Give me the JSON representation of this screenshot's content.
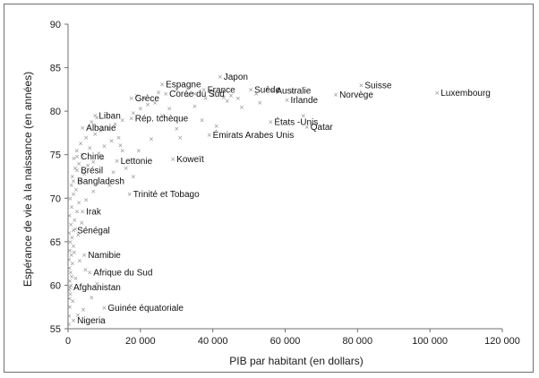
{
  "chart_data": {
    "type": "scatter",
    "title": "",
    "xlabel": "PIB par habitant (en dollars)",
    "ylabel": "Espérance de vie à la naissance (en années)",
    "xlim": [
      0,
      120000
    ],
    "ylim": [
      55,
      90
    ],
    "xticks": [
      0,
      20000,
      40000,
      60000,
      80000,
      100000,
      120000
    ],
    "xtick_labels": [
      "0",
      "20 000",
      "40 000",
      "60 000",
      "80 000",
      "100 000",
      "120 000"
    ],
    "yticks": [
      55,
      60,
      65,
      70,
      75,
      80,
      85,
      90
    ],
    "ytick_labels": [
      "55",
      "60",
      "65",
      "70",
      "75",
      "80",
      "85",
      "90"
    ],
    "grid": false,
    "marker": "x",
    "marker_color": "#8a8a8a",
    "labeled_points": [
      {
        "label": "Luxembourg",
        "x": 102000,
        "y": 82.1
      },
      {
        "label": "Suisse",
        "x": 81000,
        "y": 83.0
      },
      {
        "label": "Norvège",
        "x": 74000,
        "y": 81.9
      },
      {
        "label": "Qatar",
        "x": 66000,
        "y": 78.2
      },
      {
        "label": "États -Unis",
        "x": 56000,
        "y": 78.8
      },
      {
        "label": "Irlande",
        "x": 60500,
        "y": 81.3
      },
      {
        "label": "Suède",
        "x": 50500,
        "y": 82.5
      },
      {
        "label": "Australie",
        "x": 56500,
        "y": 82.4
      },
      {
        "label": "Japon",
        "x": 42000,
        "y": 84.0
      },
      {
        "label": "France",
        "x": 37500,
        "y": 82.5
      },
      {
        "label": "Espagne",
        "x": 26000,
        "y": 83.1
      },
      {
        "label": "Corée du Sud",
        "x": 27000,
        "y": 82.0
      },
      {
        "label": "Grèce",
        "x": 17500,
        "y": 81.5
      },
      {
        "label": "Rép. tchèque",
        "x": 17500,
        "y": 79.2
      },
      {
        "label": "Émirats Arabes Unis",
        "x": 39000,
        "y": 77.3
      },
      {
        "label": "Koweït",
        "x": 29000,
        "y": 74.5
      },
      {
        "label": "Lettonie",
        "x": 13500,
        "y": 74.3
      },
      {
        "label": "Liban",
        "x": 7500,
        "y": 79.5
      },
      {
        "label": "Albanie",
        "x": 4000,
        "y": 78.1
      },
      {
        "label": "Chine",
        "x": 2500,
        "y": 74.8
      },
      {
        "label": "Brésil",
        "x": 2500,
        "y": 73.2
      },
      {
        "label": "Trinité et Tobago",
        "x": 17000,
        "y": 70.5
      },
      {
        "label": "Bangladesh",
        "x": 1500,
        "y": 72.0
      },
      {
        "label": "Irak",
        "x": 4000,
        "y": 68.5
      },
      {
        "label": "Sénégal",
        "x": 1500,
        "y": 66.3
      },
      {
        "label": "Namibie",
        "x": 4500,
        "y": 63.5
      },
      {
        "label": "Afrique du Sud",
        "x": 6000,
        "y": 61.5
      },
      {
        "label": "Afghanistan",
        "x": 500,
        "y": 59.8
      },
      {
        "label": "Guinée équatoriale",
        "x": 10000,
        "y": 57.4
      },
      {
        "label": "Nigeria",
        "x": 1500,
        "y": 56.0
      }
    ],
    "unlabeled_points": [
      [
        200,
        55.5
      ],
      [
        300,
        56.5
      ],
      [
        500,
        57.5
      ],
      [
        400,
        58.5
      ],
      [
        600,
        59.0
      ],
      [
        300,
        59.5
      ],
      [
        800,
        60.0
      ],
      [
        500,
        60.5
      ],
      [
        1000,
        61.0
      ],
      [
        700,
        61.5
      ],
      [
        400,
        62.0
      ],
      [
        1200,
        62.5
      ],
      [
        300,
        63.0
      ],
      [
        900,
        63.5
      ],
      [
        500,
        64.0
      ],
      [
        1500,
        64.5
      ],
      [
        600,
        65.0
      ],
      [
        1100,
        65.5
      ],
      [
        300,
        66.0
      ],
      [
        2000,
        66.5
      ],
      [
        800,
        67.0
      ],
      [
        1800,
        67.5
      ],
      [
        400,
        68.0
      ],
      [
        2500,
        68.5
      ],
      [
        1000,
        69.0
      ],
      [
        3000,
        69.5
      ],
      [
        600,
        70.0
      ],
      [
        1500,
        70.5
      ],
      [
        2200,
        71.0
      ],
      [
        900,
        71.5
      ],
      [
        3500,
        72.0
      ],
      [
        1200,
        72.5
      ],
      [
        4500,
        72.8
      ],
      [
        2000,
        73.5
      ],
      [
        5500,
        73.8
      ],
      [
        3000,
        74.0
      ],
      [
        7000,
        74.2
      ],
      [
        1600,
        74.6
      ],
      [
        4000,
        75.0
      ],
      [
        8500,
        75.2
      ],
      [
        2400,
        75.5
      ],
      [
        6000,
        75.8
      ],
      [
        10000,
        76.0
      ],
      [
        3500,
        76.3
      ],
      [
        12000,
        76.6
      ],
      [
        5000,
        77.0
      ],
      [
        14000,
        77.0
      ],
      [
        7500,
        77.4
      ],
      [
        9000,
        77.8
      ],
      [
        11000,
        78.0
      ],
      [
        13000,
        78.5
      ],
      [
        6500,
        78.8
      ],
      [
        15000,
        79.0
      ],
      [
        8000,
        79.3
      ],
      [
        18000,
        79.8
      ],
      [
        20000,
        80.3
      ],
      [
        22000,
        80.8
      ],
      [
        24000,
        81.0
      ],
      [
        21000,
        81.5
      ],
      [
        19000,
        81.8
      ],
      [
        25000,
        82.2
      ],
      [
        30000,
        82.5
      ],
      [
        33000,
        81.8
      ],
      [
        35000,
        82.0
      ],
      [
        38000,
        81.5
      ],
      [
        40000,
        81.9
      ],
      [
        43000,
        81.6
      ],
      [
        44000,
        81.2
      ],
      [
        45000,
        81.8
      ],
      [
        47000,
        81.5
      ],
      [
        52000,
        82.0
      ],
      [
        55000,
        82.6
      ],
      [
        48000,
        80.5
      ],
      [
        53000,
        81.0
      ],
      [
        62000,
        82.3
      ],
      [
        65000,
        79.5
      ],
      [
        15000,
        75.5
      ],
      [
        16000,
        73.5
      ],
      [
        18000,
        72.5
      ],
      [
        12500,
        73.0
      ],
      [
        9500,
        74.6
      ],
      [
        11500,
        71.5
      ],
      [
        7000,
        70.8
      ],
      [
        5000,
        69.8
      ],
      [
        3800,
        67.2
      ],
      [
        2800,
        65.8
      ],
      [
        1700,
        63.8
      ],
      [
        3200,
        62.8
      ],
      [
        4800,
        61.8
      ],
      [
        2100,
        60.8
      ],
      [
        8000,
        60.2
      ],
      [
        6500,
        58.6
      ],
      [
        1300,
        58.2
      ],
      [
        4200,
        57.2
      ],
      [
        2700,
        56.6
      ],
      [
        26000,
        79.5
      ],
      [
        30000,
        78.0
      ],
      [
        37000,
        79.0
      ],
      [
        23000,
        76.8
      ],
      [
        19500,
        75.5
      ],
      [
        28000,
        80.3
      ],
      [
        35000,
        80.6
      ],
      [
        41000,
        78.3
      ],
      [
        31000,
        77.0
      ],
      [
        14500,
        76.1
      ]
    ]
  }
}
